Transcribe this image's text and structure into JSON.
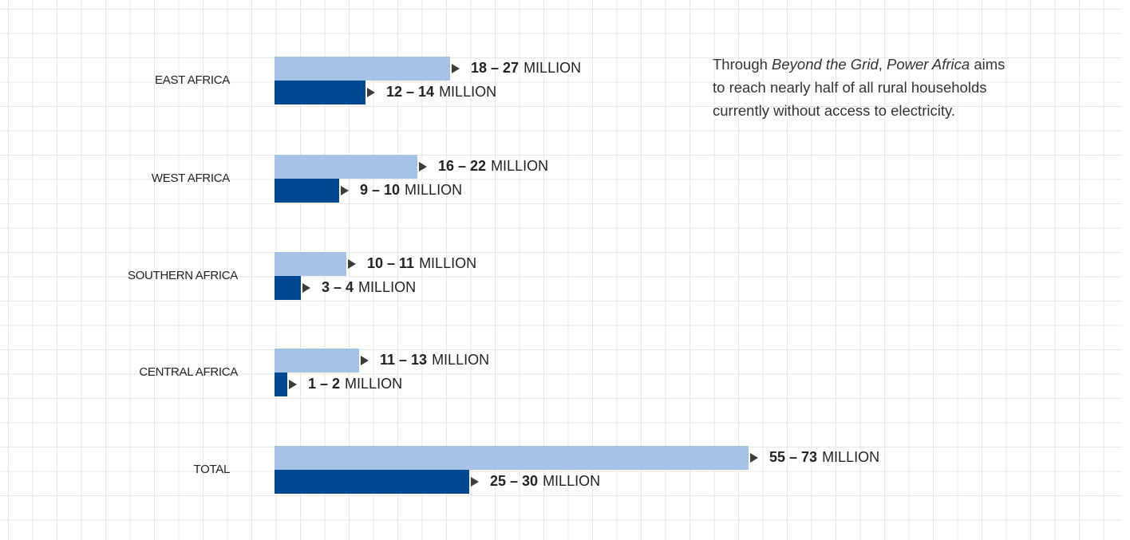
{
  "chart_data": {
    "type": "bar",
    "orientation": "horizontal",
    "categories": [
      "EAST AFRICA",
      "WEST AFRICA",
      "SOUTHERN AFRICA",
      "CENTRAL AFRICA",
      "TOTAL"
    ],
    "series": [
      {
        "color": "#a6c3e6",
        "values": [
          27,
          22,
          11,
          13,
          73
        ],
        "labels": [
          "18 – 27",
          "16 – 22",
          "10 – 11",
          "11 – 13",
          "55 – 73"
        ]
      },
      {
        "color": "#004990",
        "values": [
          14,
          10,
          4,
          2,
          30
        ],
        "labels": [
          "12 – 14",
          "9 – 10",
          "3 – 4",
          "1 – 2",
          "25 – 30"
        ]
      }
    ],
    "unit": "MILLION",
    "grid": true,
    "title": "",
    "xlabel": "",
    "ylabel": ""
  },
  "note": {
    "prefix": "Through ",
    "italic1": "Beyond the Grid",
    "sep": ", ",
    "italic2": "Power Africa",
    "suffix": " aims to reach nearly half of all rural households currently without access to electricity."
  }
}
